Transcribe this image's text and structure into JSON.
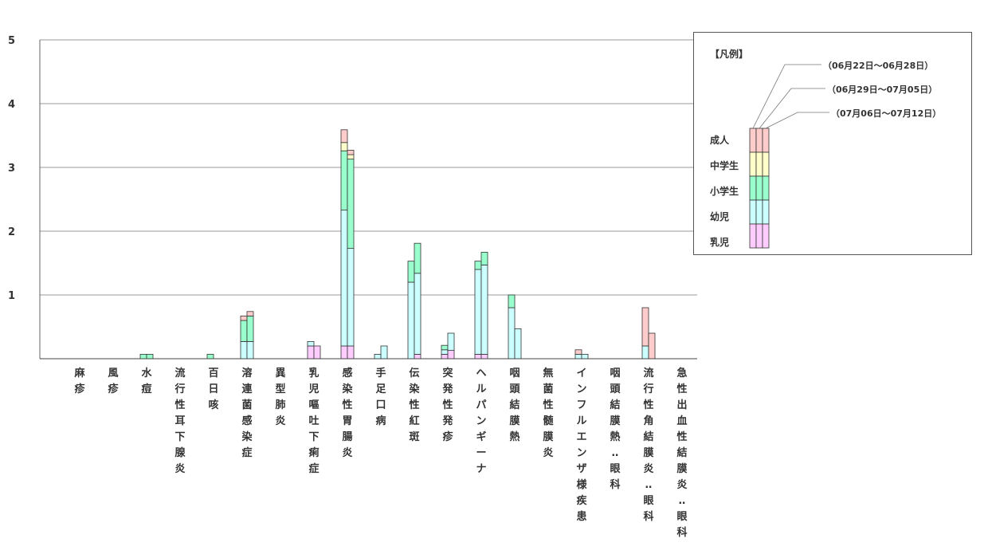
{
  "chart_data": {
    "type": "bar",
    "stacked": true,
    "ylim": [
      0,
      5
    ],
    "yticks": [
      "1",
      "2",
      "3",
      "4",
      "5"
    ],
    "grid": true,
    "legend_position": "right",
    "categories": [
      "麻疹",
      "風疹",
      "水痘",
      "流行性耳下腺炎",
      "百日咳",
      "溶連菌感染症",
      "異型肺炎",
      "乳児嘔吐下痢症",
      "感染性胃腸炎",
      "手足口病",
      "伝染性紅斑",
      "突発性発疹",
      "ヘルパンギーナ",
      "咽頭結膜熱",
      "無菌性髄膜炎",
      "インフルエンザ様疾患",
      "咽頭結膜熱‥眼科",
      "流行性角結膜炎‥眼科",
      "急性出血性結膜炎‥眼科"
    ],
    "groups": [
      "乳児",
      "幼児",
      "小学生",
      "中学生",
      "成人"
    ],
    "group_colors": [
      "#ffccff",
      "#ccffff",
      "#99ffcc",
      "#ffffcc",
      "#ffcccc"
    ],
    "weeks": [
      "（06月22日～06月28日）",
      "（06月29日～07月05日）",
      "（07月06日～07月12日）"
    ],
    "values": [
      [
        [
          0,
          0,
          0,
          0,
          0
        ],
        [
          0,
          0,
          0,
          0,
          0
        ],
        [
          0,
          0,
          0,
          0,
          0
        ]
      ],
      [
        [
          0,
          0,
          0,
          0,
          0
        ],
        [
          0,
          0,
          0,
          0,
          0
        ],
        [
          0,
          0,
          0,
          0,
          0
        ]
      ],
      [
        [
          0,
          0,
          0.07,
          0,
          0
        ],
        [
          0,
          0,
          0.07,
          0,
          0
        ],
        [
          0,
          0,
          0,
          0,
          0
        ]
      ],
      [
        [
          0,
          0,
          0,
          0,
          0
        ],
        [
          0,
          0,
          0,
          0,
          0
        ],
        [
          0,
          0,
          0,
          0,
          0
        ]
      ],
      [
        [
          0,
          0,
          0.07,
          0,
          0
        ],
        [
          0,
          0,
          0,
          0,
          0
        ],
        [
          0,
          0,
          0,
          0,
          0
        ]
      ],
      [
        [
          0,
          0.27,
          0.33,
          0,
          0.07
        ],
        [
          0,
          0.27,
          0.4,
          0,
          0.07
        ],
        [
          0,
          0,
          0,
          0,
          0
        ]
      ],
      [
        [
          0,
          0,
          0,
          0,
          0
        ],
        [
          0,
          0,
          0,
          0,
          0
        ],
        [
          0,
          0,
          0,
          0,
          0
        ]
      ],
      [
        [
          0.2,
          0.07,
          0,
          0,
          0
        ],
        [
          0.2,
          0,
          0,
          0,
          0
        ],
        [
          0,
          0,
          0,
          0,
          0
        ]
      ],
      [
        [
          0.2,
          2.13,
          0.93,
          0.13,
          0.2
        ],
        [
          0.2,
          1.53,
          1.4,
          0.07,
          0.07
        ],
        [
          0,
          0,
          0,
          0,
          0
        ]
      ],
      [
        [
          0,
          0.07,
          0,
          0,
          0
        ],
        [
          0,
          0.2,
          0,
          0,
          0
        ],
        [
          0,
          0,
          0,
          0,
          0
        ]
      ],
      [
        [
          0,
          1.2,
          0.33,
          0,
          0
        ],
        [
          0.07,
          1.27,
          0.47,
          0,
          0
        ],
        [
          0,
          0,
          0,
          0,
          0
        ]
      ],
      [
        [
          0.07,
          0.07,
          0.07,
          0,
          0
        ],
        [
          0.13,
          0.27,
          0,
          0,
          0
        ],
        [
          0,
          0,
          0,
          0,
          0
        ]
      ],
      [
        [
          0.07,
          1.33,
          0.13,
          0,
          0
        ],
        [
          0.07,
          1.4,
          0.2,
          0,
          0
        ],
        [
          0,
          0,
          0,
          0,
          0
        ]
      ],
      [
        [
          0,
          0.8,
          0.2,
          0,
          0
        ],
        [
          0,
          0.47,
          0,
          0,
          0
        ],
        [
          0,
          0,
          0,
          0,
          0
        ]
      ],
      [
        [
          0,
          0,
          0,
          0,
          0
        ],
        [
          0,
          0,
          0,
          0,
          0
        ],
        [
          0,
          0,
          0,
          0,
          0
        ]
      ],
      [
        [
          0,
          0.07,
          0,
          0,
          0.07
        ],
        [
          0,
          0.07,
          0,
          0,
          0
        ],
        [
          0,
          0,
          0,
          0,
          0
        ]
      ],
      [
        [
          0,
          0,
          0,
          0,
          0
        ],
        [
          0,
          0,
          0,
          0,
          0
        ],
        [
          0,
          0,
          0,
          0,
          0
        ]
      ],
      [
        [
          0,
          0.2,
          0,
          0,
          0.6
        ],
        [
          0,
          0,
          0,
          0,
          0.4
        ],
        [
          0,
          0,
          0,
          0,
          0
        ]
      ],
      [
        [
          0,
          0,
          0,
          0,
          0
        ],
        [
          0,
          0,
          0,
          0,
          0
        ],
        [
          0,
          0,
          0,
          0,
          0
        ]
      ]
    ]
  },
  "legend": {
    "title": "【凡例】",
    "groups_top_down": [
      "成人",
      "中学生",
      "小学生",
      "幼児",
      "乳児"
    ]
  }
}
